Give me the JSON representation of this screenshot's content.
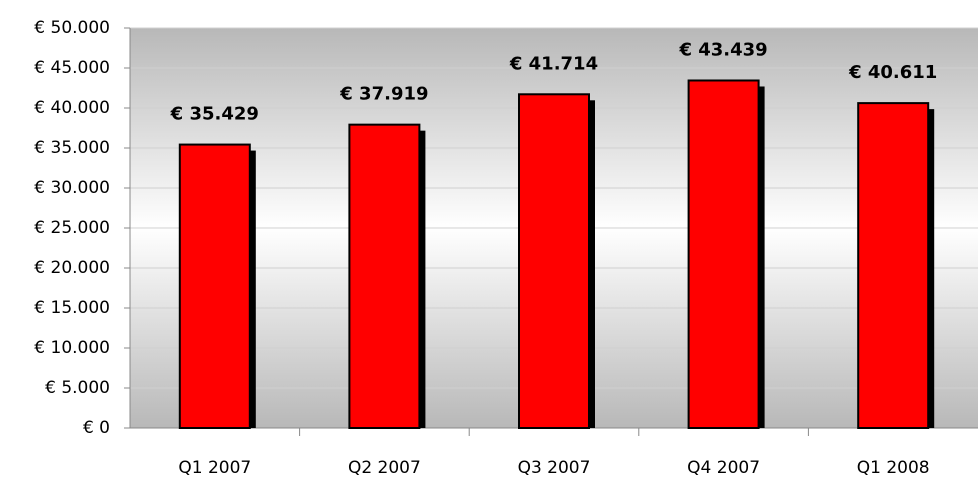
{
  "chart_data": {
    "type": "bar",
    "categories": [
      "Q1 2007",
      "Q2 2007",
      "Q3 2007",
      "Q4 2007",
      "Q1 2008"
    ],
    "values": [
      35429,
      37919,
      41714,
      43439,
      40611
    ],
    "value_labels": [
      "€ 35.429",
      "€ 37.919",
      "€ 41.714",
      "€ 43.439",
      "€ 40.611"
    ],
    "color": "#ff0000",
    "ylim": [
      0,
      50000
    ],
    "yticks": [
      {
        "value": 0,
        "label": "€ 0"
      },
      {
        "value": 5000,
        "label": "€ 5.000"
      },
      {
        "value": 10000,
        "label": "€ 10.000"
      },
      {
        "value": 15000,
        "label": "€ 15.000"
      },
      {
        "value": 20000,
        "label": "€ 20.000"
      },
      {
        "value": 25000,
        "label": "€ 25.000"
      },
      {
        "value": 30000,
        "label": "€ 30.000"
      },
      {
        "value": 35000,
        "label": "€ 35.000"
      },
      {
        "value": 40000,
        "label": "€ 40.000"
      },
      {
        "value": 45000,
        "label": "€ 45.000"
      },
      {
        "value": 50000,
        "label": "€ 50.000"
      }
    ],
    "grid": true
  }
}
